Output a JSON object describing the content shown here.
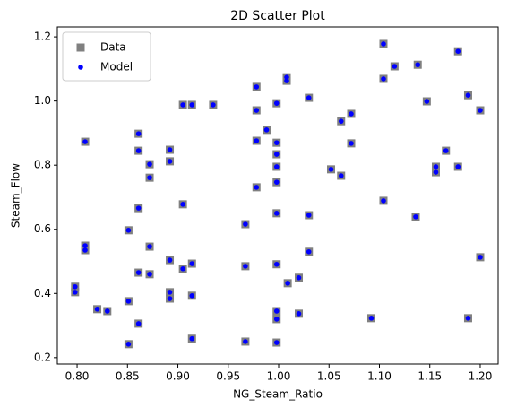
{
  "chart_data": {
    "type": "scatter",
    "title": "2D Scatter Plot",
    "x_label": "NG_Steam_Ratio",
    "y_label": "Steam_Flow",
    "x": [
      1.104,
      1.138,
      1.115,
      1.178,
      1.104,
      1.008,
      1.008,
      0.978,
      1.03,
      1.188,
      1.147,
      1.2,
      0.998,
      0.905,
      0.914,
      0.935,
      0.978,
      1.072,
      1.062,
      0.861,
      0.988,
      0.808,
      0.978,
      0.998,
      1.072,
      0.892,
      0.861,
      0.998,
      1.166,
      0.892,
      0.872,
      0.998,
      1.156,
      1.156,
      1.052,
      1.178,
      1.062,
      0.872,
      0.998,
      0.978,
      0.905,
      1.104,
      0.861,
      0.998,
      1.03,
      1.136,
      0.967,
      0.851,
      0.808,
      0.808,
      0.872,
      1.03,
      1.2,
      0.892,
      0.914,
      0.998,
      0.967,
      0.905,
      0.861,
      0.872,
      1.02,
      1.009,
      0.798,
      0.798,
      0.892,
      0.892,
      0.914,
      0.851,
      0.82,
      0.83,
      0.998,
      0.998,
      1.02,
      1.092,
      1.188,
      0.861,
      0.914,
      0.967,
      0.998,
      0.851
    ],
    "series": [
      {
        "name": "Data",
        "color": "#808080",
        "marker": "square",
        "values": [
          1.178,
          1.113,
          1.108,
          1.155,
          1.069,
          1.074,
          1.063,
          1.044,
          1.01,
          1.018,
          0.999,
          0.971,
          0.993,
          0.988,
          0.988,
          0.988,
          0.971,
          0.96,
          0.937,
          0.898,
          0.91,
          0.873,
          0.876,
          0.87,
          0.868,
          0.848,
          0.845,
          0.834,
          0.845,
          0.812,
          0.803,
          0.795,
          0.795,
          0.778,
          0.787,
          0.795,
          0.767,
          0.761,
          0.747,
          0.731,
          0.678,
          0.689,
          0.666,
          0.65,
          0.644,
          0.639,
          0.616,
          0.597,
          0.549,
          0.535,
          0.546,
          0.53,
          0.513,
          0.504,
          0.493,
          0.491,
          0.485,
          0.477,
          0.465,
          0.46,
          0.449,
          0.432,
          0.421,
          0.404,
          0.404,
          0.384,
          0.393,
          0.376,
          0.351,
          0.345,
          0.345,
          0.32,
          0.337,
          0.323,
          0.323,
          0.306,
          0.259,
          0.25,
          0.247,
          0.242
        ]
      },
      {
        "name": "Model",
        "color": "#0000ff",
        "marker": "circle",
        "values": [
          1.178,
          1.113,
          1.108,
          1.155,
          1.069,
          1.074,
          1.063,
          1.044,
          1.01,
          1.018,
          0.999,
          0.971,
          0.993,
          0.988,
          0.988,
          0.988,
          0.971,
          0.96,
          0.937,
          0.898,
          0.91,
          0.873,
          0.876,
          0.87,
          0.868,
          0.848,
          0.845,
          0.834,
          0.845,
          0.812,
          0.803,
          0.795,
          0.795,
          0.778,
          0.787,
          0.795,
          0.767,
          0.761,
          0.747,
          0.731,
          0.678,
          0.689,
          0.666,
          0.65,
          0.644,
          0.639,
          0.616,
          0.597,
          0.549,
          0.535,
          0.546,
          0.53,
          0.513,
          0.504,
          0.493,
          0.491,
          0.485,
          0.477,
          0.465,
          0.46,
          0.449,
          0.432,
          0.421,
          0.404,
          0.404,
          0.384,
          0.393,
          0.376,
          0.351,
          0.345,
          0.345,
          0.32,
          0.337,
          0.323,
          0.323,
          0.306,
          0.259,
          0.25,
          0.247,
          0.242
        ]
      }
    ],
    "xlim": [
      0.7804,
      1.2178
    ],
    "ylim": [
      0.18,
      1.231
    ],
    "xticks": [
      {
        "value": 0.8,
        "label": "0.80"
      },
      0.85,
      {
        "value": 0.9,
        "label": "0.90"
      },
      0.95,
      {
        "value": 1.0,
        "label": "1.00"
      },
      1.05,
      {
        "value": 1.1,
        "label": "1.10"
      },
      1.15,
      {
        "value": 1.2,
        "label": "1.20"
      }
    ],
    "yticks": [
      0.2,
      0.4,
      0.6,
      0.8,
      {
        "value": 1.0,
        "label": "1.0"
      },
      1.2
    ],
    "grid": false,
    "legend": "upper left"
  }
}
